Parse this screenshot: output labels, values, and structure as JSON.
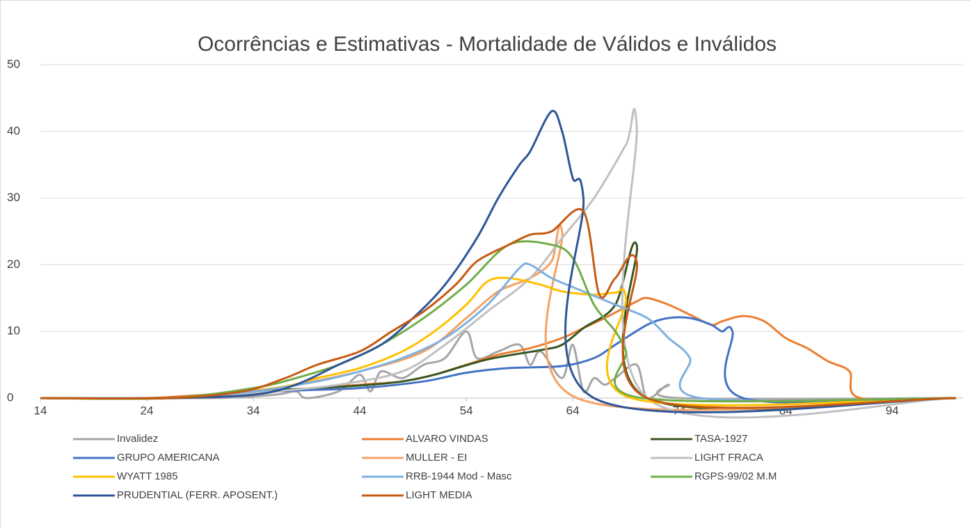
{
  "chart_data": {
    "type": "line",
    "title": "Ocorrências e Estimativas - Mortalidade de Válidos e Inválidos",
    "xlim": [
      14,
      100
    ],
    "xticks": [
      14,
      24,
      34,
      44,
      54,
      64,
      74,
      84,
      94
    ],
    "ylim": [
      0,
      50
    ],
    "yticks": [
      0,
      10,
      20,
      30,
      40,
      50
    ],
    "grid": true,
    "series": [
      {
        "name": "Invalidez",
        "color": "#a5a5a5",
        "x": [
          14,
          30,
          36,
          38,
          39,
          42,
          44,
          45,
          46,
          48,
          50,
          52,
          54,
          55,
          57,
          59,
          60,
          61,
          63,
          64,
          65,
          66,
          67,
          68,
          70,
          71,
          73,
          74,
          100
        ],
        "values": [
          0,
          0,
          0.5,
          1,
          0,
          1,
          3.5,
          1,
          4,
          3,
          5,
          6,
          10,
          6,
          7,
          8,
          5,
          7,
          3,
          8,
          1,
          3,
          2,
          3,
          5,
          0,
          2,
          0,
          0
        ]
      },
      {
        "name": "ALVARO VINDAS",
        "color": "#ed7d31",
        "x": [
          14,
          24,
          34,
          40,
          44,
          48,
          51,
          54,
          57,
          60,
          63,
          65,
          67,
          70,
          71,
          73,
          75,
          77,
          78,
          80,
          82,
          84,
          86,
          88,
          90,
          91,
          100
        ],
        "values": [
          0,
          0,
          1,
          1.5,
          2,
          2.5,
          3.5,
          5,
          6.5,
          7.5,
          9,
          10.5,
          12,
          14.5,
          15,
          14,
          12.5,
          11,
          11.5,
          12.3,
          11.5,
          9,
          7.5,
          5.5,
          4,
          0,
          0
        ]
      },
      {
        "name": "TASA-1927",
        "color": "#375623",
        "x": [
          14,
          26,
          34,
          40,
          45,
          48,
          51,
          56,
          61,
          63,
          65,
          68,
          70,
          71,
          100
        ],
        "values": [
          0,
          0,
          1,
          1.5,
          2,
          2.5,
          3.5,
          5.8,
          7.2,
          8,
          10.5,
          14,
          23,
          0,
          0
        ]
      },
      {
        "name": "GRUPO AMERICANA",
        "color": "#4472c4",
        "x": [
          14,
          26,
          36,
          44,
          50,
          54,
          58,
          63,
          66,
          68,
          71,
          73,
          75,
          77,
          78,
          79,
          80,
          100
        ],
        "values": [
          0,
          0,
          1,
          1.5,
          2.5,
          3.8,
          4.5,
          4.8,
          6,
          8,
          11,
          12,
          12,
          11,
          10,
          10,
          0,
          0
        ]
      },
      {
        "name": "MULLER - EI",
        "color": "#f4a264",
        "x": [
          14,
          26,
          34,
          38,
          44,
          50,
          54,
          57,
          60,
          62,
          63,
          64.4,
          100
        ],
        "values": [
          0,
          0,
          1,
          2,
          4,
          7,
          12,
          16,
          18,
          20.5,
          25,
          0,
          0
        ]
      },
      {
        "name": "LIGHT FRACA",
        "color": "#c0c0c0",
        "x": [
          14,
          28,
          36,
          42,
          48,
          52,
          56,
          60,
          63,
          66,
          69,
          70,
          71,
          100
        ],
        "values": [
          0,
          0,
          1,
          2,
          4,
          8,
          13,
          18,
          24,
          30,
          38,
          41,
          0,
          0
        ]
      },
      {
        "name": "WYATT 1985",
        "color": "#ffc000",
        "x": [
          14,
          26,
          36,
          40,
          44,
          48,
          51,
          54,
          56,
          58,
          61,
          63,
          66,
          68,
          69,
          69.5,
          100
        ],
        "values": [
          0,
          0,
          1.5,
          3,
          4.5,
          7,
          10,
          14,
          17.5,
          18,
          17,
          16,
          15.5,
          15.8,
          15,
          0,
          0
        ]
      },
      {
        "name": "RRB-1944 Mod - Masc",
        "color": "#7eb0e0",
        "x": [
          14,
          26,
          34,
          40,
          44,
          48,
          52,
          56,
          59,
          60,
          62,
          65,
          68,
          71,
          73,
          75,
          76,
          100
        ],
        "values": [
          0,
          0,
          1,
          2.5,
          4,
          6,
          9,
          14,
          19.5,
          20,
          18,
          16,
          14,
          12,
          9,
          6,
          0,
          0
        ]
      },
      {
        "name": "RGPS-99/02 M.M",
        "color": "#70ad47",
        "x": [
          14,
          26,
          34,
          38,
          42,
          46,
          50,
          54,
          58,
          62,
          64,
          66,
          68,
          69,
          70.5,
          100
        ],
        "values": [
          0,
          0,
          1.5,
          3,
          5,
          8,
          12,
          17,
          23,
          23,
          21,
          14,
          10,
          7,
          0,
          0
        ]
      },
      {
        "name": "PRUDENTIAL (FERR. APOSENT.)",
        "color": "#2f5597",
        "x": [
          14,
          26,
          34,
          38,
          42,
          46,
          49,
          52,
          55,
          57,
          59,
          60,
          62,
          63,
          64,
          65,
          66,
          100
        ],
        "values": [
          0,
          0,
          0.5,
          2,
          5,
          8,
          12,
          17,
          24,
          30,
          35,
          37,
          43,
          40,
          33,
          30,
          0,
          0
        ]
      },
      {
        "name": "LIGHT MEDIA",
        "color": "#c55a11",
        "x": [
          14,
          26,
          33,
          37,
          40,
          44,
          47,
          50,
          53,
          55,
          58,
          60,
          62,
          65,
          66.5,
          68,
          70,
          71,
          100
        ],
        "values": [
          0,
          0,
          1,
          3,
          5,
          7,
          10,
          13,
          17,
          20.5,
          23,
          24.5,
          25,
          28,
          15.5,
          18,
          20.5,
          0,
          0
        ]
      }
    ]
  }
}
